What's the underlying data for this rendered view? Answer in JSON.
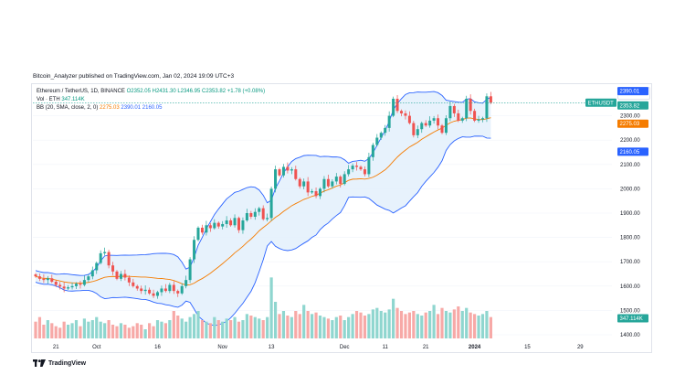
{
  "header": {
    "published": "Bitcoin_Analyzer published on TradingView.com, Jan 02, 2024 19:09 UTC+3"
  },
  "legend": {
    "symbol_line": "Ethereum / TetherUS, 1D, BINANCE",
    "ohlc": "O2352.05  H2431.30  L2346.95  C2353.82  +1.78 (+0.08%)",
    "vol_label": "Vol · ETH",
    "vol_value": "347.114K",
    "bb_label": "BB (20, SMA, close, 2, 0)",
    "bb_basis": "2275.03",
    "bb_upper": "2390.01",
    "bb_lower": "2160.05"
  },
  "currency": "USDT",
  "footer": {
    "brand": "TradingView"
  },
  "colors": {
    "up": "#26a69a",
    "down": "#ef5350",
    "basis": "#f57c00",
    "band": "#2962ff",
    "fill": "#e3f0fb",
    "vol_up": "#8fd6cf",
    "vol_down": "#f7a9a7"
  },
  "chart_data": {
    "type": "candlestick",
    "y_ticks": [
      2300,
      2200,
      2100,
      2000,
      1900,
      1800,
      1700,
      1600,
      1500,
      1400
    ],
    "ylim": [
      1385,
      2430
    ],
    "x_ticks": [
      {
        "label": "21",
        "index": 5
      },
      {
        "label": "Oct",
        "index": 15
      },
      {
        "label": "16",
        "index": 30
      },
      {
        "label": "Nov",
        "index": 46
      },
      {
        "label": "13",
        "index": 58
      },
      {
        "label": "Dec",
        "index": 76
      },
      {
        "label": "11",
        "index": 86
      },
      {
        "label": "21",
        "index": 96
      },
      {
        "label": "2024",
        "index": 108
      },
      {
        "label": "15",
        "index": 121
      },
      {
        "label": "29",
        "index": 134
      }
    ],
    "price_labels": [
      {
        "label": "ETHUSDT",
        "value": 2353.82,
        "kind": "symbol"
      },
      {
        "label": "2390.01",
        "value": 2390.01,
        "kind": "upper"
      },
      {
        "label": "2353.82",
        "value": 2353.82,
        "kind": "last"
      },
      {
        "label": "2275.03",
        "value": 2275.03,
        "kind": "basis"
      },
      {
        "label": "2160.05",
        "value": 2160.05,
        "kind": "lower"
      },
      {
        "label": "347.114K",
        "value": 347.114,
        "kind": "volume"
      }
    ],
    "closes": [
      1640,
      1630,
      1625,
      1632,
      1618,
      1605,
      1598,
      1590,
      1595,
      1600,
      1610,
      1605,
      1625,
      1640,
      1665,
      1695,
      1735,
      1740,
      1685,
      1660,
      1630,
      1650,
      1635,
      1615,
      1600,
      1590,
      1580,
      1585,
      1570,
      1560,
      1575,
      1590,
      1580,
      1605,
      1580,
      1570,
      1600,
      1625,
      1710,
      1790,
      1840,
      1820,
      1850,
      1838,
      1860,
      1845,
      1855,
      1870,
      1850,
      1880,
      1830,
      1870,
      1900,
      1885,
      1905,
      1920,
      1875,
      1880,
      2000,
      2080,
      2055,
      2090,
      2075,
      2080,
      2040,
      2010,
      2030,
      1985,
      1990,
      1970,
      2000,
      2040,
      2010,
      2030,
      2050,
      2020,
      2060,
      2080,
      2095,
      2090,
      2080,
      2060,
      2130,
      2180,
      2210,
      2230,
      2250,
      2300,
      2370,
      2320,
      2310,
      2300,
      2270,
      2220,
      2245,
      2270,
      2260,
      2280,
      2290,
      2260,
      2230,
      2290,
      2340,
      2310,
      2280,
      2290,
      2370,
      2320,
      2280,
      2285,
      2290,
      2380,
      2354
    ],
    "volume": [
      0.55,
      0.7,
      0.45,
      0.6,
      0.5,
      0.4,
      0.35,
      0.55,
      0.45,
      0.5,
      0.6,
      0.4,
      0.65,
      0.55,
      0.6,
      0.7,
      0.55,
      0.5,
      0.6,
      0.45,
      0.4,
      0.5,
      0.45,
      0.35,
      0.4,
      0.5,
      0.45,
      0.3,
      0.5,
      0.4,
      0.6,
      0.55,
      0.5,
      0.6,
      0.9,
      0.75,
      0.65,
      0.55,
      0.7,
      0.8,
      0.9,
      0.6,
      0.55,
      0.5,
      0.7,
      0.6,
      0.55,
      0.65,
      0.6,
      0.7,
      0.55,
      0.6,
      0.8,
      0.75,
      0.7,
      0.65,
      0.6,
      0.7,
      2.0,
      1.2,
      0.8,
      0.9,
      0.75,
      0.7,
      0.9,
      0.8,
      1.1,
      0.9,
      0.8,
      0.85,
      0.75,
      0.7,
      0.65,
      0.6,
      0.7,
      0.75,
      0.6,
      0.7,
      0.8,
      0.9,
      0.85,
      0.75,
      0.8,
      0.95,
      1.0,
      0.9,
      0.85,
      0.95,
      1.3,
      1.0,
      0.9,
      0.8,
      0.85,
      0.9,
      0.8,
      0.75,
      0.85,
      0.9,
      1.1,
      0.8,
      1.0,
      0.9,
      0.85,
      0.95,
      1.05,
      0.9,
      1.0,
      0.85,
      0.8,
      0.75,
      0.8,
      0.9,
      0.7
    ],
    "volume_ylim": [
      0,
      2.1
    ]
  }
}
